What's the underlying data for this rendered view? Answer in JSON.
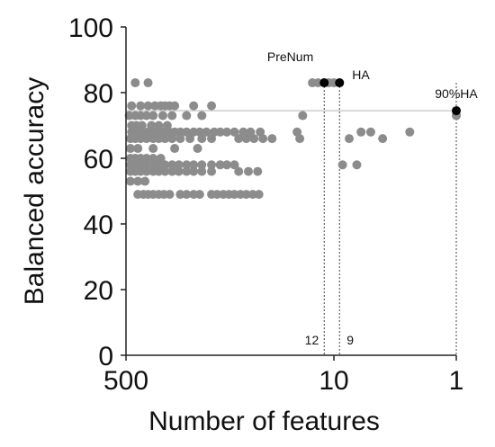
{
  "chart_data": {
    "type": "scatter",
    "xlabel": "Number of features",
    "ylabel": "Balanced accuracy",
    "x_scale": "log",
    "x_reversed": true,
    "xlim": [
      500,
      1
    ],
    "ylim": [
      0,
      100
    ],
    "x_ticks": [
      500,
      10,
      1
    ],
    "y_ticks": [
      0,
      20,
      40,
      60,
      80,
      100
    ],
    "grid": false,
    "reference_line": {
      "y": 74.5,
      "color": "#bdbdbd"
    },
    "colors": {
      "scatter": "#8c8c8c",
      "highlight": "#000000"
    },
    "series": [
      {
        "values": [
          {
            "x": 420,
            "y": 83
          },
          {
            "x": 330,
            "y": 83
          },
          {
            "x": 450,
            "y": 76
          },
          {
            "x": 380,
            "y": 76
          },
          {
            "x": 330,
            "y": 76
          },
          {
            "x": 290,
            "y": 76
          },
          {
            "x": 260,
            "y": 76
          },
          {
            "x": 240,
            "y": 76
          },
          {
            "x": 220,
            "y": 76
          },
          {
            "x": 200,
            "y": 76
          },
          {
            "x": 140,
            "y": 76
          },
          {
            "x": 100,
            "y": 76
          },
          {
            "x": 470,
            "y": 73
          },
          {
            "x": 420,
            "y": 73
          },
          {
            "x": 380,
            "y": 73
          },
          {
            "x": 340,
            "y": 73
          },
          {
            "x": 300,
            "y": 73
          },
          {
            "x": 250,
            "y": 73
          },
          {
            "x": 210,
            "y": 73
          },
          {
            "x": 160,
            "y": 73
          },
          {
            "x": 120,
            "y": 73
          },
          {
            "x": 18,
            "y": 73
          },
          {
            "x": 450,
            "y": 70
          },
          {
            "x": 410,
            "y": 70
          },
          {
            "x": 370,
            "y": 70
          },
          {
            "x": 310,
            "y": 70
          },
          {
            "x": 270,
            "y": 70
          },
          {
            "x": 230,
            "y": 70
          },
          {
            "x": 450,
            "y": 68
          },
          {
            "x": 420,
            "y": 68
          },
          {
            "x": 390,
            "y": 68
          },
          {
            "x": 360,
            "y": 68
          },
          {
            "x": 330,
            "y": 68
          },
          {
            "x": 300,
            "y": 68
          },
          {
            "x": 270,
            "y": 68
          },
          {
            "x": 245,
            "y": 68
          },
          {
            "x": 220,
            "y": 68
          },
          {
            "x": 200,
            "y": 68
          },
          {
            "x": 180,
            "y": 68
          },
          {
            "x": 160,
            "y": 68
          },
          {
            "x": 140,
            "y": 68
          },
          {
            "x": 125,
            "y": 68
          },
          {
            "x": 110,
            "y": 68
          },
          {
            "x": 95,
            "y": 68
          },
          {
            "x": 85,
            "y": 68
          },
          {
            "x": 75,
            "y": 68
          },
          {
            "x": 65,
            "y": 68
          },
          {
            "x": 55,
            "y": 68
          },
          {
            "x": 48,
            "y": 68
          },
          {
            "x": 40,
            "y": 68
          },
          {
            "x": 20,
            "y": 68
          },
          {
            "x": 6,
            "y": 68
          },
          {
            "x": 5,
            "y": 68
          },
          {
            "x": 2.4,
            "y": 68
          },
          {
            "x": 460,
            "y": 66
          },
          {
            "x": 420,
            "y": 66
          },
          {
            "x": 380,
            "y": 66
          },
          {
            "x": 340,
            "y": 66
          },
          {
            "x": 300,
            "y": 66
          },
          {
            "x": 270,
            "y": 66
          },
          {
            "x": 240,
            "y": 66
          },
          {
            "x": 210,
            "y": 66
          },
          {
            "x": 180,
            "y": 66
          },
          {
            "x": 150,
            "y": 66
          },
          {
            "x": 120,
            "y": 66
          },
          {
            "x": 100,
            "y": 66
          },
          {
            "x": 60,
            "y": 66
          },
          {
            "x": 52,
            "y": 66
          },
          {
            "x": 45,
            "y": 66
          },
          {
            "x": 38,
            "y": 66
          },
          {
            "x": 32,
            "y": 66
          },
          {
            "x": 19,
            "y": 66
          },
          {
            "x": 7.5,
            "y": 66
          },
          {
            "x": 4,
            "y": 66
          },
          {
            "x": 460,
            "y": 63
          },
          {
            "x": 400,
            "y": 63
          },
          {
            "x": 300,
            "y": 63
          },
          {
            "x": 200,
            "y": 63
          },
          {
            "x": 130,
            "y": 63
          },
          {
            "x": 460,
            "y": 60
          },
          {
            "x": 420,
            "y": 60
          },
          {
            "x": 380,
            "y": 60
          },
          {
            "x": 340,
            "y": 60
          },
          {
            "x": 300,
            "y": 60
          },
          {
            "x": 260,
            "y": 60
          },
          {
            "x": 460,
            "y": 58
          },
          {
            "x": 420,
            "y": 58
          },
          {
            "x": 380,
            "y": 58
          },
          {
            "x": 340,
            "y": 58
          },
          {
            "x": 300,
            "y": 58
          },
          {
            "x": 270,
            "y": 58
          },
          {
            "x": 240,
            "y": 58
          },
          {
            "x": 210,
            "y": 58
          },
          {
            "x": 185,
            "y": 58
          },
          {
            "x": 160,
            "y": 58
          },
          {
            "x": 140,
            "y": 58
          },
          {
            "x": 120,
            "y": 58
          },
          {
            "x": 100,
            "y": 58
          },
          {
            "x": 85,
            "y": 58
          },
          {
            "x": 75,
            "y": 58
          },
          {
            "x": 65,
            "y": 58
          },
          {
            "x": 8.5,
            "y": 58
          },
          {
            "x": 6.5,
            "y": 58
          },
          {
            "x": 460,
            "y": 56
          },
          {
            "x": 420,
            "y": 56
          },
          {
            "x": 380,
            "y": 56
          },
          {
            "x": 340,
            "y": 56
          },
          {
            "x": 300,
            "y": 56
          },
          {
            "x": 270,
            "y": 56
          },
          {
            "x": 240,
            "y": 56
          },
          {
            "x": 210,
            "y": 56
          },
          {
            "x": 185,
            "y": 56
          },
          {
            "x": 160,
            "y": 56
          },
          {
            "x": 140,
            "y": 56
          },
          {
            "x": 120,
            "y": 56
          },
          {
            "x": 100,
            "y": 56
          },
          {
            "x": 60,
            "y": 56
          },
          {
            "x": 50,
            "y": 56
          },
          {
            "x": 42,
            "y": 56
          },
          {
            "x": 460,
            "y": 53
          },
          {
            "x": 400,
            "y": 53
          },
          {
            "x": 350,
            "y": 53
          },
          {
            "x": 400,
            "y": 49
          },
          {
            "x": 360,
            "y": 49
          },
          {
            "x": 330,
            "y": 49
          },
          {
            "x": 300,
            "y": 49
          },
          {
            "x": 270,
            "y": 49
          },
          {
            "x": 245,
            "y": 49
          },
          {
            "x": 220,
            "y": 49
          },
          {
            "x": 180,
            "y": 49
          },
          {
            "x": 160,
            "y": 49
          },
          {
            "x": 140,
            "y": 49
          },
          {
            "x": 125,
            "y": 49
          },
          {
            "x": 100,
            "y": 49
          },
          {
            "x": 90,
            "y": 49
          },
          {
            "x": 80,
            "y": 49
          },
          {
            "x": 72,
            "y": 49
          },
          {
            "x": 65,
            "y": 49
          },
          {
            "x": 58,
            "y": 49
          },
          {
            "x": 52,
            "y": 49
          },
          {
            "x": 46,
            "y": 49
          },
          {
            "x": 41,
            "y": 49
          },
          {
            "x": 15,
            "y": 83
          },
          {
            "x": 13.5,
            "y": 83
          },
          {
            "x": 11,
            "y": 83
          },
          {
            "x": 10,
            "y": 83
          },
          {
            "x": 1,
            "y": 73
          }
        ]
      },
      {
        "values": [
          {
            "x": 12,
            "y": 83,
            "label": "PreNum"
          },
          {
            "x": 9,
            "y": 83,
            "label": "HA"
          },
          {
            "x": 1,
            "y": 74.5,
            "label": "90%HA"
          }
        ]
      }
    ],
    "vertical_markers": [
      {
        "x": 12,
        "label": "12"
      },
      {
        "x": 9,
        "label": "9"
      },
      {
        "x": 1,
        "label": ""
      }
    ]
  }
}
